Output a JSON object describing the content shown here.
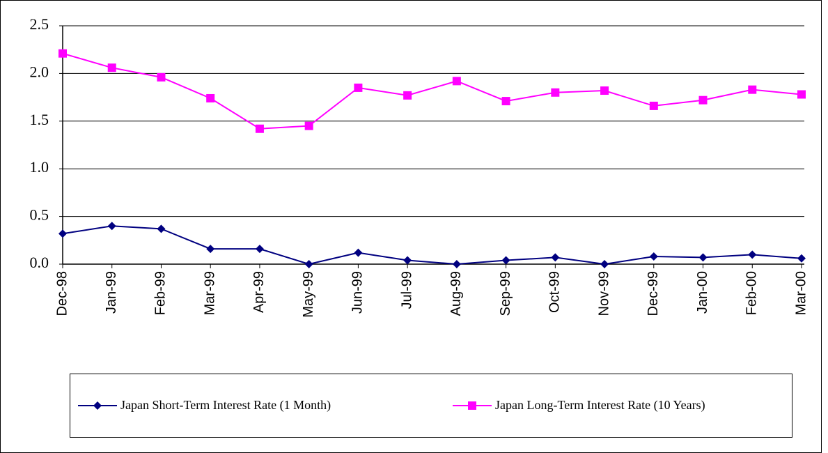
{
  "chart_data": {
    "type": "line",
    "categories": [
      "Dec-98",
      "Jan-99",
      "Feb-99",
      "Mar-99",
      "Apr-99",
      "May-99",
      "Jun-99",
      "Jul-99",
      "Aug-99",
      "Sep-99",
      "Oct-99",
      "Nov-99",
      "Dec-99",
      "Jan-00",
      "Feb-00",
      "Mar-00"
    ],
    "series": [
      {
        "name": "Japan Short-Term Interest Rate (1 Month)",
        "color": "#000080",
        "marker": "diamond",
        "values": [
          0.32,
          0.4,
          0.37,
          0.16,
          0.16,
          0.0,
          0.12,
          0.04,
          0.0,
          0.04,
          0.07,
          0.0,
          0.08,
          0.07,
          0.1,
          0.06
        ]
      },
      {
        "name": "Japan Long-Term Interest Rate (10 Years)",
        "color": "#ff00ff",
        "marker": "square",
        "values": [
          2.21,
          2.06,
          1.96,
          1.74,
          1.42,
          1.45,
          1.85,
          1.77,
          1.92,
          1.71,
          1.8,
          1.82,
          1.66,
          1.72,
          1.83,
          1.78
        ]
      }
    ],
    "ylim": [
      0,
      2.5
    ],
    "yticks": [
      {
        "value": 0,
        "label": "0.0"
      },
      0.5,
      {
        "value": 1,
        "label": "1.0"
      },
      1.5,
      {
        "value": 2,
        "label": "2.0"
      },
      2.5
    ],
    "grid": true,
    "legend": "bottom"
  }
}
